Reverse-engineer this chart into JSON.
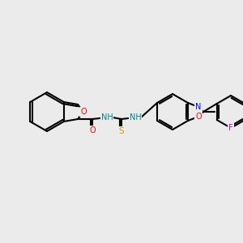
{
  "bg_color": "#ebebeb",
  "bond_color": "#000000",
  "bond_width": 1.5,
  "atom_colors": {
    "O": "#ff0000",
    "N": "#008080",
    "S": "#c8a000",
    "F": "#cc00cc",
    "N2": "#0000ff",
    "O2": "#ff0000"
  }
}
